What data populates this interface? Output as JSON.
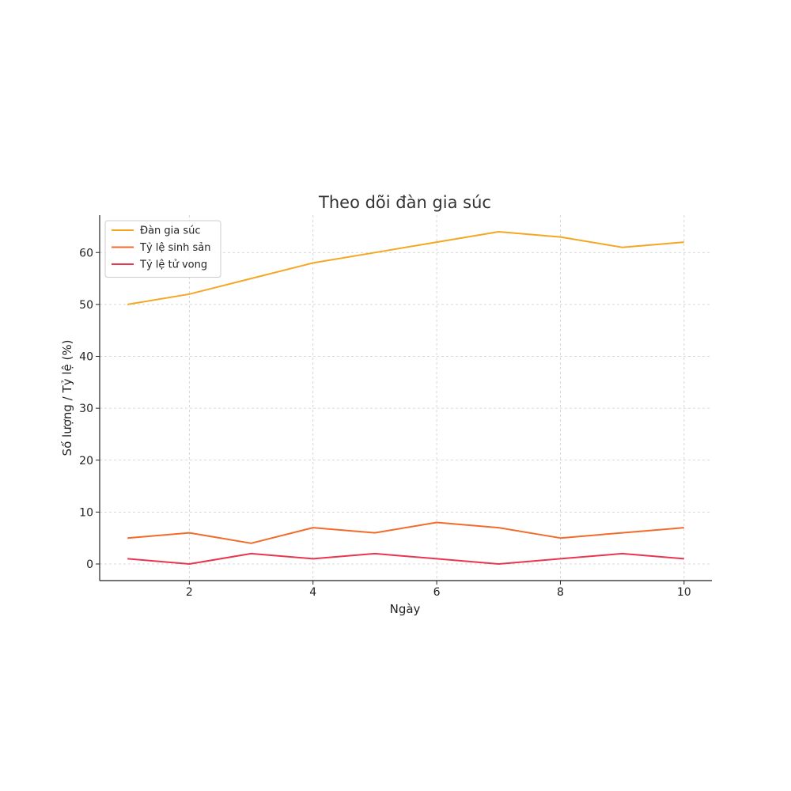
{
  "chart_data": {
    "type": "line",
    "title": "Theo dõi đàn gia súc",
    "xlabel": "Ngày",
    "ylabel": "Số lượng / Tỷ lệ (%)",
    "x": [
      1,
      2,
      3,
      4,
      5,
      6,
      7,
      8,
      9,
      10
    ],
    "xlim": [
      0.55,
      10.45
    ],
    "ylim": [
      -3.2,
      67.2
    ],
    "xticks": [
      2,
      4,
      6,
      8,
      10
    ],
    "yticks": [
      0,
      10,
      20,
      30,
      40,
      50,
      60
    ],
    "grid": true,
    "legend_position": "top-left",
    "series": [
      {
        "name": "Đàn gia súc",
        "color": "#f5a623",
        "values": [
          50,
          52,
          55,
          58,
          60,
          62,
          64,
          63,
          61,
          62
        ]
      },
      {
        "name": "Tỷ lệ sinh sản",
        "color": "#f26b2a",
        "values": [
          5,
          6,
          4,
          7,
          6,
          8,
          7,
          5,
          6,
          7
        ]
      },
      {
        "name": "Tỷ lệ tử vong",
        "color": "#e8364f",
        "values": [
          1,
          0,
          2,
          1,
          2,
          1,
          0,
          1,
          2,
          1
        ]
      }
    ]
  }
}
